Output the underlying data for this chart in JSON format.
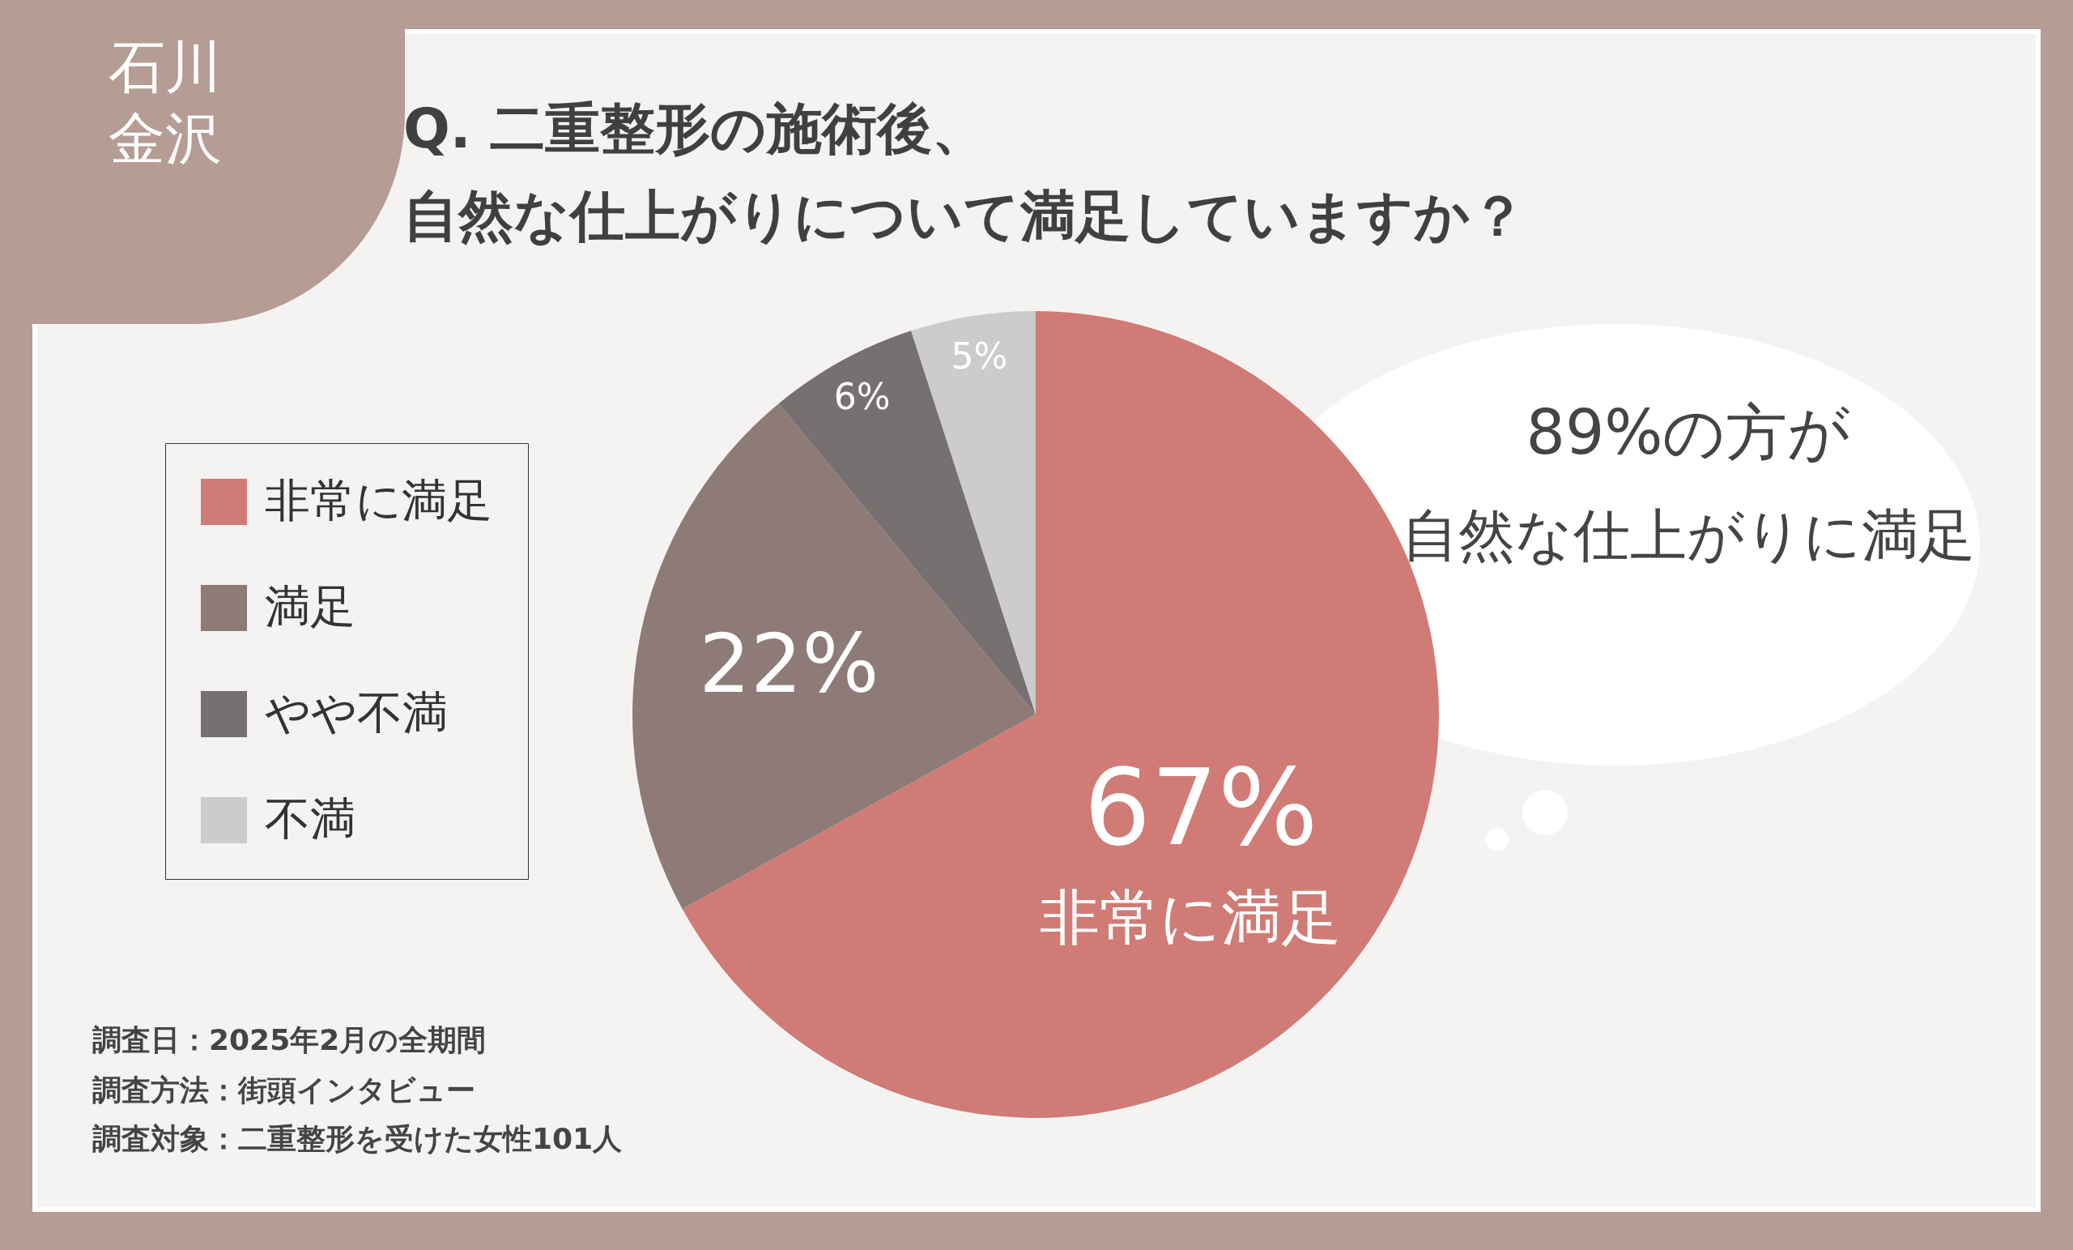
{
  "chart_data": {
    "type": "pie",
    "title": "Q. 二重整形の施術後、自然な仕上がりについて満足していますか？",
    "categories": [
      "非常に満足",
      "満足",
      "やや不満",
      "不満"
    ],
    "values": [
      67,
      22,
      6,
      5
    ],
    "colors": [
      "#d07b75",
      "#8e7a77",
      "#767070",
      "#cccccc"
    ],
    "value_labels": [
      "67%",
      "22%",
      "6%",
      "5%"
    ],
    "legend": "left",
    "annotations": [
      "石川",
      "金沢",
      "89%の方が",
      "自然な仕上がりに満足",
      "非常に満足",
      "調査日：2025年2月の全期間",
      "調査方法：街頭インタビュー",
      "調査対象：二重整形を受けた女性101人"
    ]
  }
}
